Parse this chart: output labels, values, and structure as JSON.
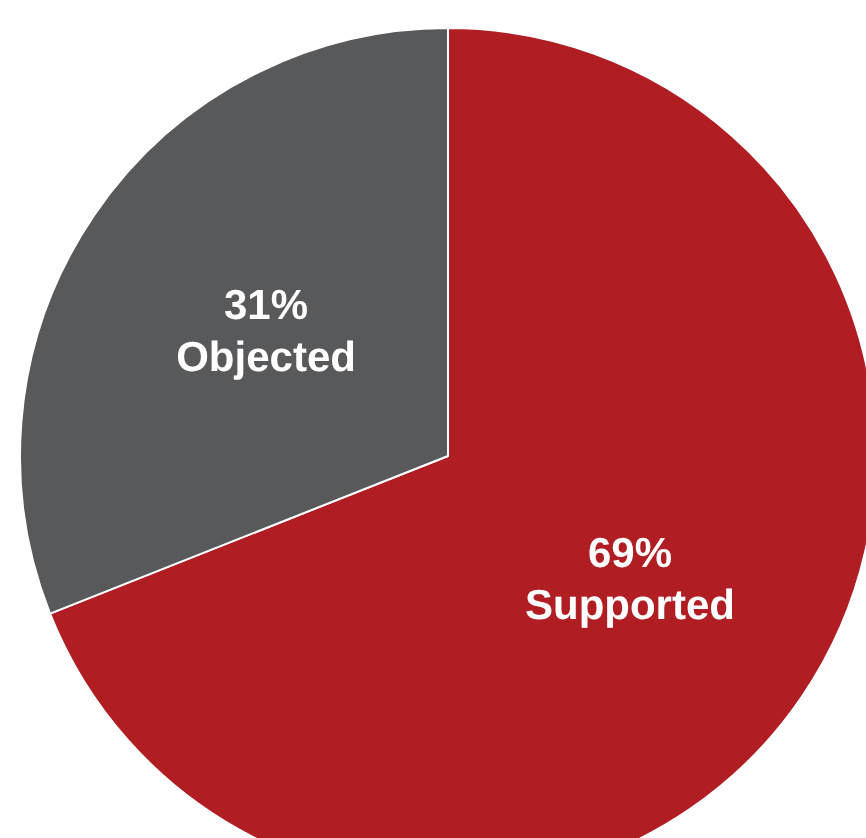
{
  "chart_data": {
    "type": "pie",
    "categories": [
      "Supported",
      "Objected"
    ],
    "values": [
      69,
      31
    ],
    "value_labels": [
      "69%",
      "31%"
    ],
    "colors": [
      "#b01e23",
      "#58595b"
    ],
    "legend": false
  }
}
